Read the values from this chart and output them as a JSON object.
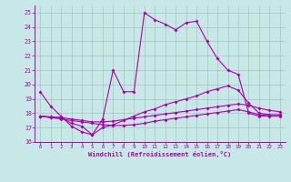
{
  "background_color": "#c8e8e8",
  "grid_color": "#a0c8bc",
  "line_color": "#aa00aa",
  "xlim": [
    -0.5,
    23.5
  ],
  "ylim": [
    16,
    25.5
  ],
  "xtick_vals": [
    0,
    1,
    2,
    3,
    4,
    5,
    6,
    7,
    8,
    9,
    10,
    11,
    12,
    13,
    14,
    15,
    16,
    17,
    18,
    19,
    20,
    21,
    22,
    23
  ],
  "ytick_vals": [
    16,
    17,
    18,
    19,
    20,
    21,
    22,
    23,
    24,
    25
  ],
  "xlabel": "Windchill (Refroidissement éolien,°C)",
  "line1": {
    "x": [
      0,
      1,
      2,
      3,
      4,
      5,
      6,
      7,
      8,
      9,
      10,
      11,
      12,
      13,
      14,
      15,
      16,
      17,
      18,
      19,
      20,
      21,
      22,
      23
    ],
    "y": [
      19.5,
      18.5,
      17.8,
      17.1,
      16.7,
      16.5,
      17.6,
      21.0,
      19.5,
      19.5,
      25.0,
      24.5,
      24.2,
      23.8,
      24.3,
      24.4,
      23.0,
      21.8,
      21.0,
      20.7,
      18.0,
      17.8,
      17.8,
      17.8
    ]
  },
  "line2": {
    "x": [
      0,
      1,
      2,
      3,
      4,
      5,
      6,
      7,
      8,
      9,
      10,
      11,
      12,
      13,
      14,
      15,
      16,
      17,
      18,
      19,
      20,
      21,
      22,
      23
    ],
    "y": [
      17.8,
      17.7,
      17.7,
      17.3,
      17.1,
      16.5,
      17.0,
      17.2,
      17.5,
      17.8,
      18.1,
      18.3,
      18.6,
      18.8,
      19.0,
      19.2,
      19.5,
      19.7,
      19.9,
      19.6,
      18.7,
      18.0,
      17.9,
      17.9
    ]
  },
  "line3": {
    "x": [
      0,
      1,
      2,
      3,
      4,
      5,
      6,
      7,
      8,
      9,
      10,
      11,
      12,
      13,
      14,
      15,
      16,
      17,
      18,
      19,
      20,
      21,
      22,
      23
    ],
    "y": [
      17.8,
      17.75,
      17.7,
      17.6,
      17.5,
      17.4,
      17.4,
      17.45,
      17.55,
      17.65,
      17.75,
      17.85,
      17.95,
      18.05,
      18.15,
      18.25,
      18.35,
      18.45,
      18.55,
      18.65,
      18.55,
      18.35,
      18.2,
      18.1
    ]
  },
  "line4": {
    "x": [
      0,
      1,
      2,
      3,
      4,
      5,
      6,
      7,
      8,
      9,
      10,
      11,
      12,
      13,
      14,
      15,
      16,
      17,
      18,
      19,
      20,
      21,
      22,
      23
    ],
    "y": [
      17.8,
      17.7,
      17.6,
      17.5,
      17.4,
      17.3,
      17.2,
      17.15,
      17.15,
      17.2,
      17.3,
      17.45,
      17.55,
      17.65,
      17.75,
      17.85,
      17.95,
      18.05,
      18.15,
      18.25,
      18.1,
      17.9,
      17.82,
      17.82
    ]
  }
}
